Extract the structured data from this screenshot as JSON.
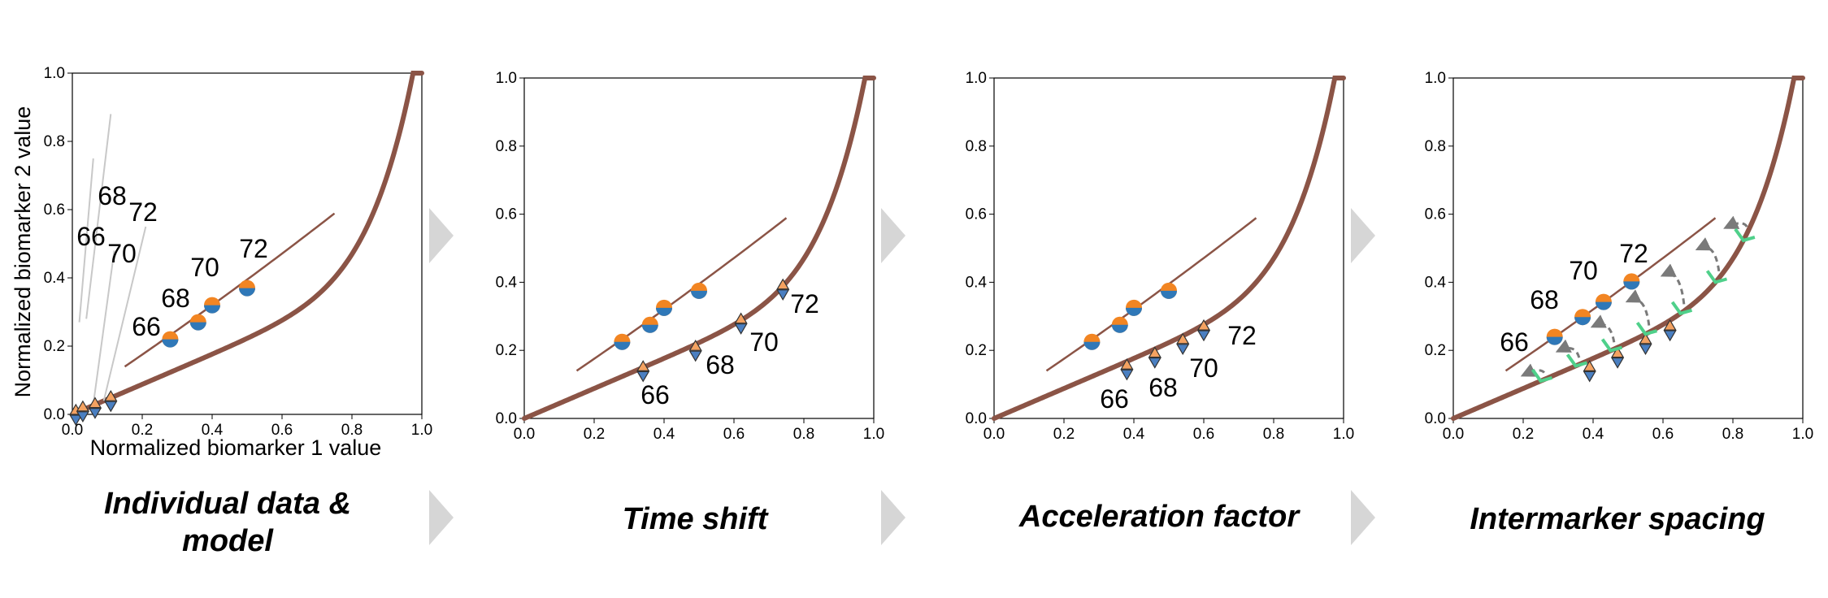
{
  "colors": {
    "model_curve": "#8b5446",
    "individual_line": "#8b5446",
    "point_orange": "#f28522",
    "point_blue": "#2f78b8",
    "triangle_orange": "#f4a261",
    "triangle_blue": "#4a7fc1",
    "grey_line": "#c8c8c8",
    "arrow": "#7a7a7a",
    "green_marker": "#4fd08a",
    "chevron": "#d6d6d6"
  },
  "axes_common": {
    "xlim": [
      0,
      1
    ],
    "ylim": [
      0,
      1
    ],
    "x_ticks": [
      "0.0",
      "0.2",
      "0.4",
      "0.6",
      "0.8",
      "1.0"
    ],
    "y_ticks": [
      "0.0",
      "0.2",
      "0.4",
      "0.6",
      "0.8",
      "1.0"
    ]
  },
  "panels": [
    {
      "caption_lines": [
        "Individual data &",
        "model"
      ],
      "xlabel": "Normalized biomarker 1 value",
      "ylabel": "Normalized biomarker 2 value",
      "ages": [
        "66",
        "68",
        "70",
        "72"
      ]
    },
    {
      "caption_lines": [
        "Time shift"
      ],
      "ages": [
        "66",
        "68",
        "70",
        "72"
      ]
    },
    {
      "caption_lines": [
        "Acceleration factor"
      ],
      "ages": [
        "66",
        "68",
        "70",
        "72"
      ]
    },
    {
      "caption_lines": [
        "Intermarker spacing"
      ],
      "ages": [
        "66",
        "68",
        "70",
        "72"
      ]
    }
  ],
  "chart_data": {
    "type": "scatter",
    "model_curve_label": "",
    "individual_points_before": [
      {
        "age": "66",
        "x": 0.28,
        "y": 0.22
      },
      {
        "age": "68",
        "x": 0.36,
        "y": 0.27
      },
      {
        "age": "70",
        "x": 0.4,
        "y": 0.32
      },
      {
        "age": "72",
        "x": 0.5,
        "y": 0.37
      }
    ],
    "individual_points_on_model": [
      {
        "age": "66",
        "x": 0.34,
        "y": 0.14
      },
      {
        "age": "68",
        "x": 0.49,
        "y": 0.2
      },
      {
        "age": "70",
        "x": 0.62,
        "y": 0.28
      },
      {
        "age": "72",
        "x": 0.74,
        "y": 0.38
      }
    ]
  }
}
